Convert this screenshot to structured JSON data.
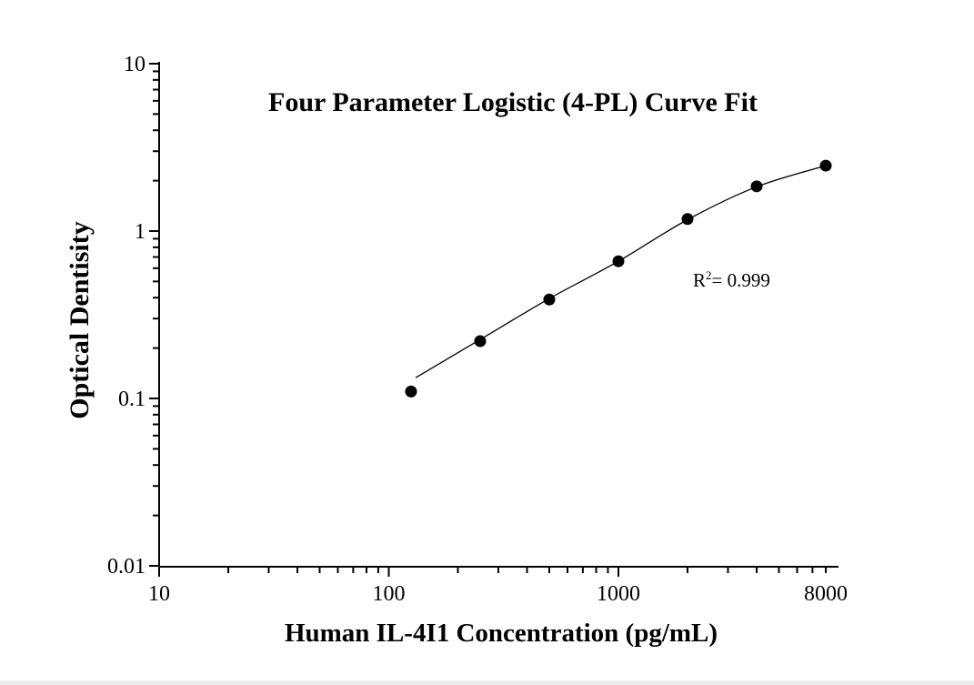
{
  "window": {
    "background": "#ffffff",
    "footer_strip_color": "#ececec"
  },
  "chart_data": {
    "type": "scatter",
    "title": "Four Parameter Logistic (4-PL) Curve Fit",
    "xlabel": "Human IL-4I1 Concentration (pg/mL)",
    "ylabel": "Optical Dentisity",
    "x_scale": "log",
    "y_scale": "log",
    "xlim": [
      10,
      9100
    ],
    "ylim": [
      0.01,
      10.3
    ],
    "grid": false,
    "axis_color": "#000000",
    "x_tick_labels": [
      "10",
      "100",
      "1000",
      "8000"
    ],
    "x_tick_values": [
      10,
      100,
      1000,
      8000
    ],
    "x_major_tick_values": [
      10,
      100,
      1000
    ],
    "y_tick_labels": [
      "10",
      "1",
      "0.1",
      "0.01"
    ],
    "y_tick_values": [
      10,
      1,
      0.1,
      0.01
    ],
    "annotation": {
      "base": "R",
      "superscript": "2",
      "rest": "= 0.999"
    },
    "r_squared": 0.999,
    "series": [
      {
        "name": "standard-curve-points",
        "marker": "filled-circle",
        "color": "#000000",
        "x": [
          125,
          250,
          500,
          1000,
          2000,
          4000,
          8000
        ],
        "y": [
          0.11,
          0.22,
          0.39,
          0.66,
          1.18,
          1.85,
          2.46
        ]
      }
    ],
    "fit_curve": {
      "name": "4-PL-fitted-curve",
      "color": "#000000",
      "x": [
        131,
        250,
        500,
        1000,
        2000,
        4000,
        8000
      ],
      "y": [
        0.133,
        0.225,
        0.395,
        0.66,
        1.17,
        1.84,
        2.46
      ]
    }
  }
}
